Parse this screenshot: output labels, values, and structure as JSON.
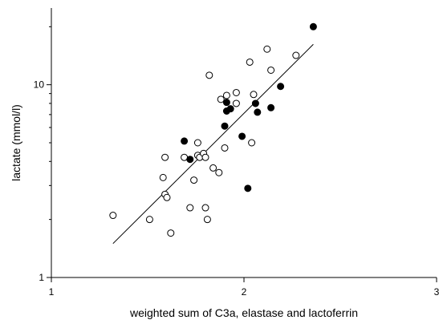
{
  "chart_data": {
    "type": "scatter",
    "title": "",
    "xlabel": "weighted sum of C3a, elastase and lactoferrin",
    "ylabel": "lactate (mmol/l)",
    "xlim": [
      1,
      3
    ],
    "ylim": [
      1,
      25
    ],
    "yscale": "log",
    "x_ticks": [
      1,
      2,
      3
    ],
    "x_tick_labels": [
      "1",
      "2",
      "3"
    ],
    "y_ticks": [
      1,
      10
    ],
    "y_tick_labels": [
      "1",
      "10"
    ],
    "grid": false,
    "legend": "none",
    "series": [
      {
        "marker": "open-circle",
        "points": [
          [
            1.32,
            2.1
          ],
          [
            1.51,
            2.0
          ],
          [
            1.58,
            3.3
          ],
          [
            1.59,
            2.7
          ],
          [
            1.59,
            4.2
          ],
          [
            1.6,
            2.6
          ],
          [
            1.62,
            1.7
          ],
          [
            1.69,
            4.2
          ],
          [
            1.72,
            2.3
          ],
          [
            1.74,
            3.2
          ],
          [
            1.76,
            4.3
          ],
          [
            1.76,
            5.0
          ],
          [
            1.77,
            4.2
          ],
          [
            1.79,
            4.4
          ],
          [
            1.8,
            4.2
          ],
          [
            1.8,
            2.3
          ],
          [
            1.81,
            2.0
          ],
          [
            1.82,
            11.2
          ],
          [
            1.84,
            3.7
          ],
          [
            1.87,
            3.5
          ],
          [
            1.88,
            8.4
          ],
          [
            1.9,
            4.7
          ],
          [
            1.91,
            8.8
          ],
          [
            1.96,
            8.0
          ],
          [
            1.96,
            9.1
          ],
          [
            2.03,
            13.1
          ],
          [
            2.04,
            5.0
          ],
          [
            2.05,
            8.9
          ],
          [
            2.12,
            15.3
          ],
          [
            2.14,
            11.9
          ],
          [
            2.27,
            14.2
          ]
        ]
      },
      {
        "marker": "filled-circle",
        "points": [
          [
            1.69,
            5.1
          ],
          [
            1.72,
            4.1
          ],
          [
            1.9,
            6.1
          ],
          [
            1.91,
            8.1
          ],
          [
            1.91,
            7.3
          ],
          [
            1.93,
            7.5
          ],
          [
            1.99,
            5.4
          ],
          [
            2.02,
            2.9
          ],
          [
            2.06,
            8.0
          ],
          [
            2.07,
            7.2
          ],
          [
            2.14,
            7.6
          ],
          [
            2.19,
            9.8
          ],
          [
            2.36,
            20.0
          ]
        ]
      }
    ],
    "regression_line": {
      "x": [
        1.32,
        2.36
      ],
      "y": [
        1.5,
        16.2
      ]
    }
  }
}
